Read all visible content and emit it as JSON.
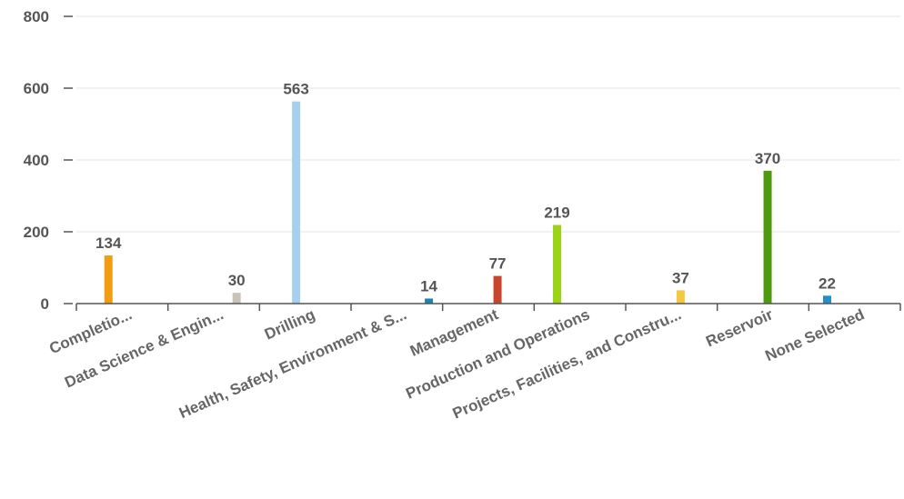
{
  "chart_data": {
    "type": "bar",
    "categories": [
      "Completio...",
      "Data Science & Engin...",
      "Drilling",
      "Health, Safety, Environment & S...",
      "Management",
      "Production and Operations",
      "Projects, Facilities, and Constru...",
      "Reservoir",
      "None Selected"
    ],
    "values": [
      134,
      30,
      563,
      14,
      77,
      219,
      37,
      370,
      22
    ],
    "colors": [
      "#f39c12",
      "#c8c3b5",
      "#a6d1ee",
      "#1b84b4",
      "#c9462c",
      "#9ad414",
      "#f5c842",
      "#4e9a0f",
      "#1e8fd0"
    ],
    "bar_offset": [
      0.35,
      0.75,
      0.4,
      0.85,
      0.6,
      0.25,
      0.6,
      0.55,
      0.2
    ],
    "yticks": [
      "0",
      "200",
      "400",
      "600",
      "800"
    ],
    "ylim": [
      0,
      800
    ],
    "grid": true,
    "title": "",
    "xlabel": "",
    "ylabel": ""
  }
}
